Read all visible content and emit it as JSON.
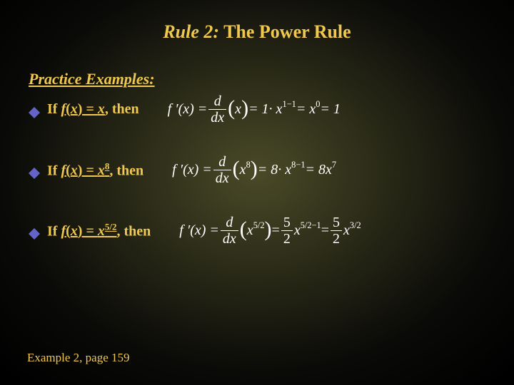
{
  "colors": {
    "gold": "#f0c850",
    "white": "#ffffff",
    "bullet": "#6464c8"
  },
  "title": {
    "italic_part": "Rule 2:",
    "rest": " The Power Rule",
    "fontsize": 26
  },
  "subtitle": "Practice Examples:",
  "examples": [
    {
      "prefix": "If ",
      "func_f": "f",
      "func_x": "x",
      "eq_part_html": " = <span class='u'><span class='x'>x</span></span>, ",
      "suffix": "then",
      "formula": {
        "lead": "f ′(x) = ",
        "frac_num": "d",
        "frac_den": "dx",
        "inner": "x",
        "after_paren": " = 1· x",
        "sup1": "1−1",
        "mid": " = x",
        "sup2": "0",
        "tail": " = 1"
      }
    },
    {
      "prefix": "If ",
      "func_f": "f",
      "func_x": "x",
      "exp": "8",
      "suffix": "then",
      "formula": {
        "lead": "f ′(x) = ",
        "frac_num": "d",
        "frac_den": "dx",
        "inner": "x",
        "inner_sup": "8",
        "after_paren": " = 8· x",
        "sup1": "8−1",
        "mid": " = 8x",
        "sup2": "7",
        "tail": ""
      }
    },
    {
      "prefix": "If ",
      "func_f": "f",
      "func_x": "x",
      "exp": "5/2",
      "suffix": "then",
      "formula": {
        "lead": "f ′(x) = ",
        "frac_num": "d",
        "frac_den": "dx",
        "inner": "x",
        "inner_sup": "5/2",
        "coef_num": "5",
        "coef_den": "2",
        "after_coef": " x",
        "sup1": "5/2−1",
        "res_num": "5",
        "res_den": "2",
        "mid": " x",
        "sup2": "3/2",
        "tail": ""
      }
    }
  ],
  "footer": "Example 2, page 159"
}
